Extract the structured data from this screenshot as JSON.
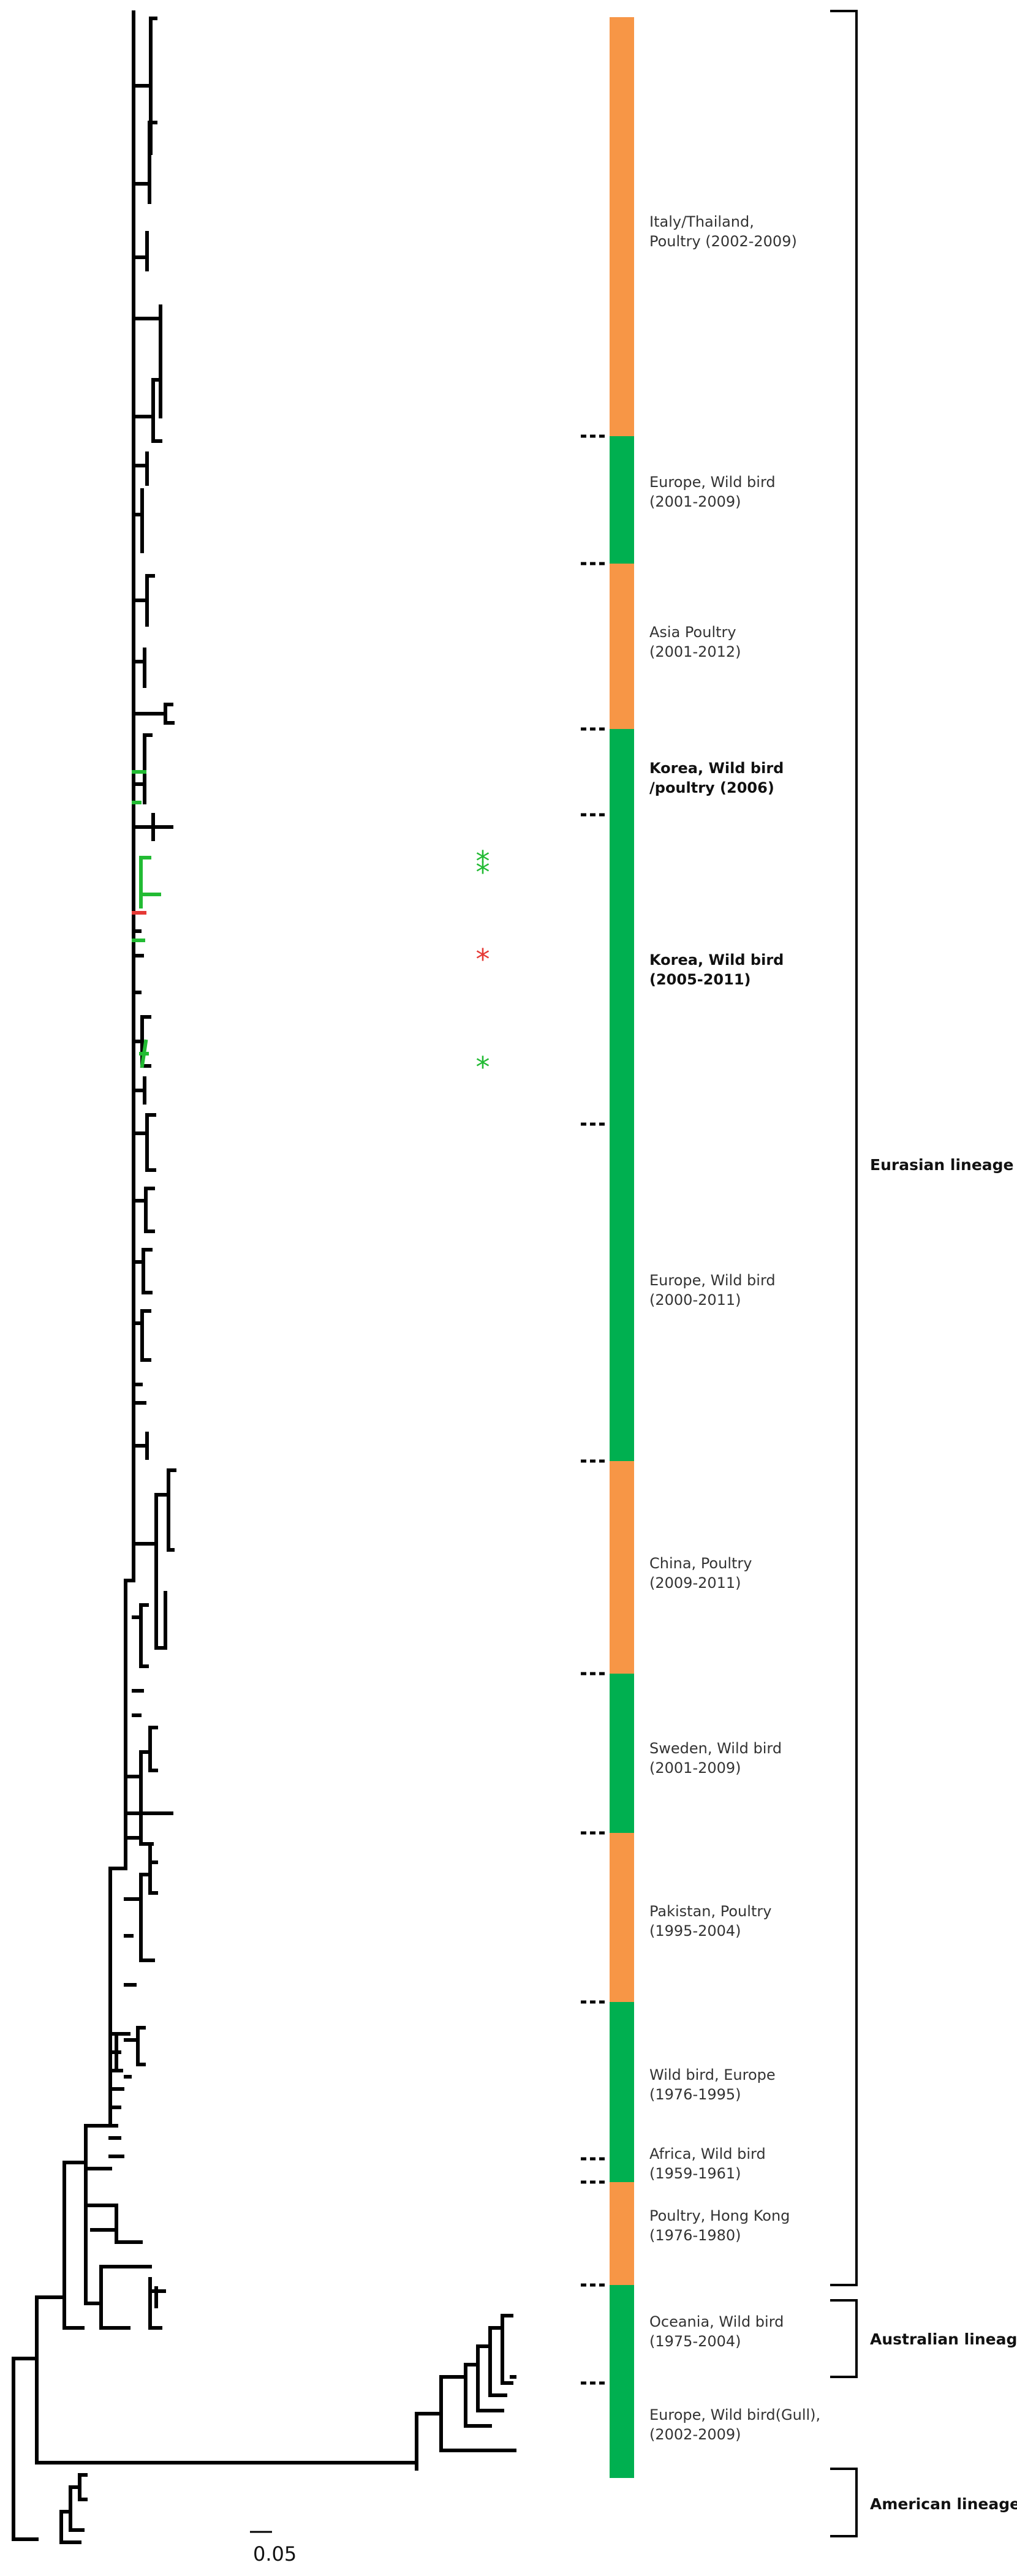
{
  "scale_bar_label": "0.05",
  "colors": {
    "poultry": "#f79646",
    "wild_bird": "#00b050",
    "highlight_green": "#22bb33",
    "highlight_red": "#e53935",
    "branch": "#000000"
  },
  "clades": [
    {
      "id": "italy",
      "line1": "Italy/Thailand,",
      "line2": "Poultry (2002-2009)",
      "host": "poultry",
      "bold": false
    },
    {
      "id": "europe-wild-2001",
      "line1": "Europe, Wild bird",
      "line2": "(2001-2009)",
      "host": "wild_bird",
      "bold": false
    },
    {
      "id": "asia-poultry",
      "line1": "Asia Poultry",
      "line2": "(2001-2012)",
      "host": "poultry",
      "bold": false
    },
    {
      "id": "korea-2006",
      "line1": "Korea, Wild bird",
      "line2": "/poultry (2006)",
      "host": "wild_bird",
      "bold": true
    },
    {
      "id": "korea-2005",
      "line1": "Korea, Wild bird",
      "line2": "(2005-2011)",
      "host": "wild_bird",
      "bold": true
    },
    {
      "id": "europe-wild-2000",
      "line1": "Europe, Wild bird",
      "line2": "(2000-2011)",
      "host": "wild_bird",
      "bold": false
    },
    {
      "id": "china",
      "line1": "China, Poultry",
      "line2": "(2009-2011)",
      "host": "poultry",
      "bold": false
    },
    {
      "id": "sweden",
      "line1": "Sweden, Wild bird",
      "line2": "(2001-2009)",
      "host": "wild_bird",
      "bold": false
    },
    {
      "id": "pakistan",
      "line1": "Pakistan, Poultry",
      "line2": "(1995-2004)",
      "host": "poultry",
      "bold": false
    },
    {
      "id": "wild-europe-1976",
      "line1": "Wild bird, Europe",
      "line2": "(1976-1995)",
      "host": "wild_bird",
      "bold": false
    },
    {
      "id": "africa",
      "line1": "Africa, Wild bird",
      "line2": "(1959-1961)",
      "host": "wild_bird",
      "bold": false
    },
    {
      "id": "hong-kong",
      "line1": "Poultry, Hong Kong",
      "line2": "(1976-1980)",
      "host": "poultry",
      "bold": false
    },
    {
      "id": "oceania",
      "line1": "Oceania, Wild bird",
      "line2": "(1975-2004)",
      "host": "wild_bird",
      "bold": false
    },
    {
      "id": "europe-gull",
      "line1": "Europe, Wild bird(Gull),",
      "line2": "(2002-2009)",
      "host": "wild_bird",
      "bold": false
    }
  ],
  "lineages": [
    {
      "id": "eurasian",
      "label": "Eurasian lineage"
    },
    {
      "id": "australian",
      "label": "Australian lineage"
    },
    {
      "id": "american",
      "label": "American lineage"
    }
  ],
  "markers": [
    {
      "symbol": "*",
      "color": "highlight_green"
    },
    {
      "symbol": "*",
      "color": "highlight_green"
    },
    {
      "symbol": "*",
      "color": "highlight_red"
    },
    {
      "symbol": "*",
      "color": "highlight_green"
    }
  ]
}
